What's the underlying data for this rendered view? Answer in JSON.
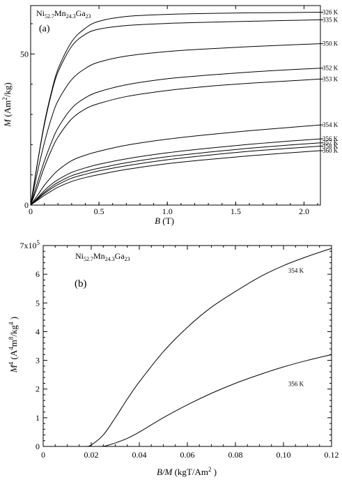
{
  "chart_data": [
    {
      "type": "line",
      "panel": "(a)",
      "sample_label": {
        "base1": "Ni",
        "sub1": "52.7",
        "base2": "Mn",
        "sub2": "24.3",
        "base3": "Ga",
        "sub3": "23"
      },
      "xlabel": {
        "var": "B",
        "unit": " (T)"
      },
      "ylabel": {
        "var": "M",
        "unit": " (Am",
        "sup": "2",
        "unit2": "/kg)"
      },
      "xlim": [
        0,
        2.12
      ],
      "ylim": [
        0,
        66
      ],
      "x_ticks": [
        0,
        0.5,
        1.0,
        1.5,
        2.0
      ],
      "x_tick_labels": [
        "0",
        "0.5",
        "1.0",
        "1.5",
        "2.0"
      ],
      "y_tick_labels": [
        {
          "value": 0,
          "label": "0"
        },
        {
          "value": 50,
          "label": "50"
        }
      ],
      "legend": "curve labels at right edge",
      "x": [
        0,
        0.05,
        0.1,
        0.15,
        0.2,
        0.3,
        0.4,
        0.5,
        0.7,
        1.0,
        1.3,
        1.6,
        1.9,
        2.12
      ],
      "series": [
        {
          "name": "326 K",
          "values": [
            0,
            14,
            27,
            37,
            45,
            54,
            58.5,
            60.8,
            62.4,
            63.1,
            63.4,
            63.6,
            63.7,
            63.8
          ]
        },
        {
          "name": "335 K",
          "values": [
            0,
            14,
            26.5,
            36.5,
            44,
            52.5,
            56.5,
            58.2,
            59.4,
            60.1,
            60.5,
            60.8,
            61.1,
            61.3
          ]
        },
        {
          "name": "350 K",
          "values": [
            0,
            11,
            20.5,
            28.5,
            34.5,
            41.5,
            45.2,
            47.3,
            49.3,
            50.8,
            51.7,
            52.4,
            53,
            53.4
          ]
        },
        {
          "name": "352 K",
          "values": [
            0,
            7.5,
            14.5,
            20.5,
            25.5,
            32,
            35.5,
            37.5,
            39.8,
            41.8,
            43,
            44,
            44.8,
            45.3
          ]
        },
        {
          "name": "353 K",
          "values": [
            0,
            6,
            12.5,
            18,
            22.5,
            28.5,
            31.8,
            33.6,
            35.9,
            37.9,
            39.3,
            40.3,
            41.1,
            41.7
          ]
        },
        {
          "name": "354 K",
          "values": [
            0,
            3.2,
            6.5,
            9.2,
            11.5,
            14.7,
            16.5,
            17.8,
            19.8,
            21.8,
            23.3,
            24.6,
            25.7,
            26.5
          ]
        },
        {
          "name": "356 K",
          "values": [
            0,
            2.4,
            4.8,
            6.8,
            8.4,
            10.8,
            12.3,
            13.5,
            15.3,
            17.3,
            18.8,
            20.1,
            21.2,
            21.9
          ]
        },
        {
          "name": "357 K",
          "values": [
            0,
            2.1,
            4.2,
            6,
            7.5,
            9.7,
            11.1,
            12.2,
            14,
            16,
            17.5,
            18.8,
            19.9,
            20.6
          ]
        },
        {
          "name": "358 K",
          "values": [
            0,
            1.9,
            3.8,
            5.4,
            6.8,
            8.9,
            10.2,
            11.3,
            13,
            15,
            16.5,
            17.8,
            18.8,
            19.5
          ]
        },
        {
          "name": "360 K",
          "values": [
            0,
            1.6,
            3.2,
            4.6,
            5.9,
            7.8,
            9.1,
            10.1,
            11.8,
            13.7,
            15.1,
            16.3,
            17.3,
            18
          ]
        }
      ]
    },
    {
      "type": "line",
      "panel": "(b)",
      "sample_label": {
        "base1": "Ni",
        "sub1": "52.7",
        "base2": "Mn",
        "sub2": "24.3",
        "base3": "Ga",
        "sub3": "23"
      },
      "xlabel": {
        "var": "B/M",
        "unit": " (kgT/Am",
        "sup": "2",
        "unit2": " )"
      },
      "ylabel": {
        "var": "M",
        "sup": "4",
        "unit": " (A",
        "sup2": "4",
        "unit2": "m",
        "sup3": "8",
        "unit3": "/kg",
        "sup4": "4",
        "unit4": " )"
      },
      "y_multiplier": {
        "base": "7x10",
        "exp": "5"
      },
      "xlim": [
        0,
        0.12
      ],
      "ylim": [
        0,
        7
      ],
      "x_ticks": [
        0,
        0.02,
        0.04,
        0.06,
        0.08,
        0.1,
        0.12
      ],
      "x_tick_labels": [
        "0",
        "0.02",
        "0.04",
        "0.06",
        "0.08",
        "0.10",
        "0.12"
      ],
      "y_ticks": [
        0,
        1,
        2,
        3,
        4,
        5,
        6
      ],
      "y_tick_labels": [
        "0",
        "1",
        "2",
        "3",
        "4",
        "5",
        "6"
      ],
      "legend": "curve labels near right end",
      "series": [
        {
          "name": "354 K",
          "x": [
            0.018,
            0.02,
            0.025,
            0.03,
            0.035,
            0.04,
            0.05,
            0.06,
            0.07,
            0.08,
            0.09,
            0.1,
            0.11,
            0.12
          ],
          "values": [
            0,
            0.05,
            0.4,
            1.0,
            1.65,
            2.25,
            3.3,
            4.15,
            4.85,
            5.4,
            5.9,
            6.3,
            6.62,
            6.9
          ]
        },
        {
          "name": "356 K",
          "x": [
            0.024,
            0.026,
            0.03,
            0.035,
            0.04,
            0.05,
            0.06,
            0.07,
            0.08,
            0.09,
            0.1,
            0.11,
            0.12
          ],
          "values": [
            0,
            0.02,
            0.12,
            0.28,
            0.5,
            1.0,
            1.45,
            1.85,
            2.2,
            2.5,
            2.77,
            3.0,
            3.2
          ]
        }
      ]
    }
  ]
}
